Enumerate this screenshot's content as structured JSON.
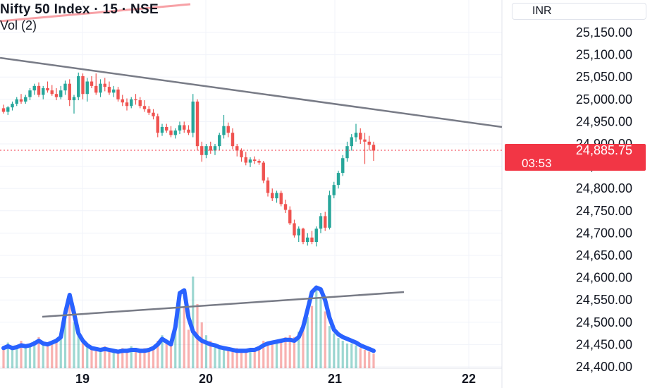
{
  "header": {
    "title": "Nifty 50 Index · 15 · NSE",
    "volume_label": "Vol (2)",
    "currency": "INR"
  },
  "price_tag": {
    "price": "24,885.75",
    "countdown": "03:53",
    "color": "#f23645"
  },
  "colors": {
    "up": "#26a69a",
    "down": "#ef5350",
    "volume_ma": "#2962ff",
    "trendline": "#787b86",
    "axis_text": "#131722",
    "grid": "#f0f3fa"
  },
  "chart_data": {
    "type": "candlestick",
    "y_axis_labels": [
      "25,150.00",
      "25,100.00",
      "25,050.00",
      "25,000.00",
      "24,950.00",
      "24,900.00",
      "24,850.00",
      "24,800.00",
      "24,750.00",
      "24,700.00",
      "24,650.00",
      "24,600.00",
      "24,550.00",
      "24,500.00",
      "24,450.00",
      "24,400.00"
    ],
    "x_axis_labels": [
      "19",
      "20",
      "21",
      "22"
    ],
    "last_price": 24885.75,
    "candles": [
      [
        24980,
        24988,
        24968,
        24972
      ],
      [
        24972,
        24985,
        24965,
        24982
      ],
      [
        24982,
        24995,
        24975,
        24990
      ],
      [
        24990,
        25005,
        24985,
        25000
      ],
      [
        25000,
        25012,
        24990,
        24995
      ],
      [
        24995,
        25010,
        24990,
        25005
      ],
      [
        25005,
        25025,
        24998,
        25020
      ],
      [
        25020,
        25035,
        25010,
        25030
      ],
      [
        25030,
        25038,
        25005,
        25010
      ],
      [
        25010,
        25030,
        25000,
        25025
      ],
      [
        25025,
        25040,
        25015,
        25020
      ],
      [
        25020,
        25032,
        25008,
        25012
      ],
      [
        25012,
        25025,
        24998,
        25005
      ],
      [
        25005,
        25030,
        25000,
        25020
      ],
      [
        25020,
        25042,
        25010,
        25035
      ],
      [
        25035,
        25045,
        24985,
        24998
      ],
      [
        24998,
        25010,
        24968,
        25005
      ],
      [
        25005,
        25060,
        24998,
        25052
      ],
      [
        25052,
        25058,
        25000,
        25012
      ],
      [
        25012,
        25048,
        24995,
        25040
      ],
      [
        25040,
        25052,
        25025,
        25030
      ],
      [
        25030,
        25058,
        25010,
        25015
      ],
      [
        25015,
        25045,
        25005,
        25035
      ],
      [
        25035,
        25048,
        25018,
        25028
      ],
      [
        25028,
        25040,
        25010,
        25015
      ],
      [
        25015,
        25030,
        25005,
        25022
      ],
      [
        25022,
        25028,
        24995,
        25000
      ],
      [
        25000,
        25010,
        24985,
        24993
      ],
      [
        24993,
        25002,
        24975,
        24985
      ],
      [
        24985,
        25005,
        24980,
        25000
      ],
      [
        25000,
        25012,
        24988,
        24998
      ],
      [
        24998,
        25005,
        24980,
        24985
      ],
      [
        24985,
        24998,
        24972,
        24978
      ],
      [
        24978,
        24985,
        24965,
        24970
      ],
      [
        24970,
        24978,
        24955,
        24962
      ],
      [
        24962,
        24968,
        24915,
        24925
      ],
      [
        24925,
        24945,
        24918,
        24938
      ],
      [
        24938,
        24945,
        24925,
        24930
      ],
      [
        24930,
        24940,
        24915,
        24920
      ],
      [
        24920,
        24935,
        24912,
        24930
      ],
      [
        24930,
        24950,
        24922,
        24942
      ],
      [
        24942,
        24950,
        24925,
        24932
      ],
      [
        24932,
        24942,
        24920,
        24925
      ],
      [
        24925,
        25012,
        24915,
        24995
      ],
      [
        24995,
        25000,
        24885,
        24895
      ],
      [
        24895,
        24905,
        24860,
        24875
      ],
      [
        24875,
        24900,
        24868,
        24895
      ],
      [
        24895,
        24905,
        24878,
        24885
      ],
      [
        24885,
        24900,
        24875,
        24895
      ],
      [
        24895,
        24925,
        24885,
        24920
      ],
      [
        24920,
        24965,
        24912,
        24940
      ],
      [
        24940,
        24948,
        24915,
        24925
      ],
      [
        24925,
        24935,
        24888,
        24895
      ],
      [
        24895,
        24900,
        24872,
        24885
      ],
      [
        24885,
        24890,
        24860,
        24870
      ],
      [
        24870,
        24882,
        24852,
        24858
      ],
      [
        24858,
        24870,
        24848,
        24865
      ],
      [
        24865,
        24872,
        24855,
        24862
      ],
      [
        24862,
        24866,
        24853,
        24858
      ],
      [
        24858,
        24862,
        24812,
        24818
      ],
      [
        24818,
        24825,
        24782,
        24790
      ],
      [
        24790,
        24800,
        24772,
        24778
      ],
      [
        24778,
        24795,
        24768,
        24790
      ],
      [
        24790,
        24795,
        24760,
        24765
      ],
      [
        24765,
        24775,
        24745,
        24752
      ],
      [
        24752,
        24760,
        24718,
        24722
      ],
      [
        24722,
        24730,
        24690,
        24695
      ],
      [
        24695,
        24715,
        24680,
        24710
      ],
      [
        24710,
        24712,
        24675,
        24680
      ],
      [
        24680,
        24700,
        24672,
        24690
      ],
      [
        24690,
        24705,
        24675,
        24680
      ],
      [
        24680,
        24715,
        24670,
        24710
      ],
      [
        24710,
        24745,
        24700,
        24738
      ],
      [
        24738,
        24748,
        24705,
        24712
      ],
      [
        24712,
        24795,
        24708,
        24785
      ],
      [
        24785,
        24815,
        24778,
        24808
      ],
      [
        24808,
        24840,
        24800,
        24835
      ],
      [
        24835,
        24875,
        24828,
        24868
      ],
      [
        24868,
        24905,
        24860,
        24895
      ],
      [
        24895,
        24922,
        24885,
        24915
      ],
      [
        24915,
        24945,
        24905,
        24925
      ],
      [
        24925,
        24935,
        24900,
        24910
      ],
      [
        24910,
        24925,
        24855,
        24905
      ],
      [
        24905,
        24918,
        24885,
        24898
      ],
      [
        24898,
        24905,
        24862,
        24885
      ]
    ],
    "volume_bars": [
      0.22,
      0.28,
      0.2,
      0.25,
      0.3,
      0.22,
      0.26,
      0.3,
      0.34,
      0.27,
      0.24,
      0.3,
      0.32,
      0.36,
      0.55,
      0.7,
      0.5,
      0.36,
      0.3,
      0.26,
      0.24,
      0.22,
      0.2,
      0.24,
      0.22,
      0.2,
      0.18,
      0.22,
      0.2,
      0.24,
      0.22,
      0.18,
      0.22,
      0.2,
      0.24,
      0.3,
      0.36,
      0.3,
      0.24,
      0.52,
      0.78,
      0.66,
      0.42,
      1.0,
      0.7,
      0.5,
      0.36,
      0.3,
      0.26,
      0.22,
      0.24,
      0.2,
      0.18,
      0.22,
      0.2,
      0.18,
      0.22,
      0.2,
      0.24,
      0.3,
      0.28,
      0.26,
      0.3,
      0.32,
      0.34,
      0.36,
      0.34,
      0.4,
      0.46,
      0.56,
      0.68,
      0.9,
      0.76,
      0.62,
      0.46,
      0.38,
      0.33,
      0.3,
      0.27,
      0.27,
      0.25,
      0.22,
      0.2,
      0.18,
      0.16
    ],
    "volume_ma": [
      0.22,
      0.24,
      0.22,
      0.23,
      0.25,
      0.24,
      0.25,
      0.27,
      0.3,
      0.27,
      0.26,
      0.28,
      0.3,
      0.34,
      0.6,
      0.8,
      0.6,
      0.38,
      0.3,
      0.25,
      0.22,
      0.21,
      0.2,
      0.21,
      0.2,
      0.19,
      0.18,
      0.19,
      0.19,
      0.2,
      0.2,
      0.19,
      0.19,
      0.2,
      0.22,
      0.26,
      0.32,
      0.29,
      0.26,
      0.45,
      0.82,
      0.85,
      0.55,
      0.4,
      0.34,
      0.3,
      0.28,
      0.26,
      0.25,
      0.23,
      0.22,
      0.21,
      0.2,
      0.19,
      0.19,
      0.19,
      0.2,
      0.2,
      0.22,
      0.25,
      0.27,
      0.28,
      0.29,
      0.3,
      0.31,
      0.31,
      0.3,
      0.34,
      0.45,
      0.64,
      0.83,
      0.88,
      0.86,
      0.74,
      0.55,
      0.42,
      0.37,
      0.34,
      0.32,
      0.3,
      0.28,
      0.25,
      0.23,
      0.21,
      0.19
    ]
  }
}
